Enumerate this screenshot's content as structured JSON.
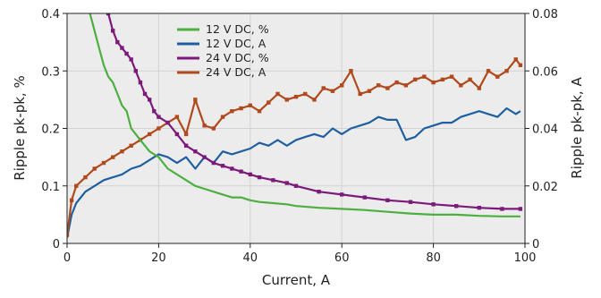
{
  "chart_data": {
    "type": "line",
    "xlabel": "Current, A",
    "ylabel_left": "Ripple pk-pk, %",
    "ylabel_right": "Ripple pk-pk, A",
    "xlim": [
      0,
      100
    ],
    "ylim_left": [
      0,
      0.4
    ],
    "ylim_right": [
      0,
      0.08
    ],
    "x_ticks": [
      0,
      20,
      40,
      60,
      80,
      100
    ],
    "y_ticks_left": [
      0,
      0.1,
      0.2,
      0.3,
      0.4
    ],
    "y_ticks_left_labels": [
      "0",
      "0.1",
      "0.2",
      "0.3",
      "0.4"
    ],
    "y_ticks_right": [
      0,
      0.02,
      0.04,
      0.06,
      0.08
    ],
    "y_ticks_right_labels": [
      "0",
      "0.02",
      "0.04",
      "0.06",
      "0.08"
    ],
    "grid": true,
    "legend_position": "top-center",
    "series": [
      {
        "name": "12 V DC, %",
        "axis": "left",
        "color": "#4daf3f",
        "x": [
          5,
          6,
          7,
          8,
          9,
          10,
          11,
          12,
          13,
          14,
          15,
          16,
          18,
          20,
          22,
          24,
          26,
          28,
          30,
          32,
          34,
          36,
          38,
          40,
          42,
          45,
          48,
          50,
          55,
          60,
          65,
          70,
          75,
          80,
          85,
          90,
          95,
          99
        ],
        "y": [
          0.4,
          0.37,
          0.34,
          0.31,
          0.29,
          0.28,
          0.26,
          0.24,
          0.23,
          0.2,
          0.19,
          0.18,
          0.16,
          0.15,
          0.13,
          0.12,
          0.11,
          0.1,
          0.095,
          0.09,
          0.085,
          0.08,
          0.08,
          0.075,
          0.072,
          0.07,
          0.068,
          0.065,
          0.062,
          0.06,
          0.058,
          0.055,
          0.052,
          0.05,
          0.05,
          0.048,
          0.047,
          0.047
        ]
      },
      {
        "name": "12 V DC, A",
        "axis": "right",
        "color": "#1f5fa0",
        "x": [
          0,
          1,
          2,
          4,
          6,
          8,
          10,
          12,
          14,
          16,
          18,
          20,
          22,
          24,
          26,
          28,
          30,
          32,
          34,
          36,
          38,
          40,
          42,
          44,
          46,
          48,
          50,
          52,
          54,
          56,
          58,
          60,
          62,
          64,
          66,
          68,
          70,
          72,
          74,
          76,
          78,
          80,
          82,
          84,
          86,
          88,
          90,
          92,
          94,
          96,
          98,
          99
        ],
        "y": [
          0.002,
          0.01,
          0.014,
          0.018,
          0.02,
          0.022,
          0.023,
          0.024,
          0.026,
          0.027,
          0.029,
          0.031,
          0.03,
          0.028,
          0.03,
          0.026,
          0.03,
          0.028,
          0.032,
          0.031,
          0.032,
          0.033,
          0.035,
          0.034,
          0.036,
          0.034,
          0.036,
          0.037,
          0.038,
          0.037,
          0.04,
          0.038,
          0.04,
          0.041,
          0.042,
          0.044,
          0.043,
          0.043,
          0.036,
          0.037,
          0.04,
          0.041,
          0.042,
          0.042,
          0.044,
          0.045,
          0.046,
          0.045,
          0.044,
          0.047,
          0.045,
          0.046
        ]
      },
      {
        "name": "24 V DC, %",
        "axis": "left",
        "color": "#7b1a7a",
        "x": [
          9,
          10,
          11,
          12,
          13,
          14,
          15,
          16,
          17,
          18,
          19,
          20,
          22,
          24,
          26,
          28,
          30,
          32,
          34,
          36,
          38,
          40,
          42,
          45,
          48,
          50,
          55,
          60,
          65,
          70,
          75,
          80,
          85,
          90,
          95,
          99
        ],
        "y": [
          0.4,
          0.37,
          0.35,
          0.34,
          0.33,
          0.32,
          0.3,
          0.28,
          0.26,
          0.25,
          0.23,
          0.22,
          0.21,
          0.19,
          0.17,
          0.16,
          0.15,
          0.14,
          0.135,
          0.13,
          0.125,
          0.12,
          0.115,
          0.11,
          0.105,
          0.1,
          0.09,
          0.085,
          0.08,
          0.075,
          0.072,
          0.068,
          0.065,
          0.062,
          0.06,
          0.06
        ]
      },
      {
        "name": "24 V DC, A",
        "axis": "right",
        "color": "#b04a1c",
        "x": [
          0,
          1,
          2,
          4,
          6,
          8,
          10,
          12,
          14,
          16,
          18,
          20,
          22,
          24,
          26,
          28,
          30,
          32,
          34,
          36,
          38,
          40,
          42,
          44,
          46,
          48,
          50,
          52,
          54,
          56,
          58,
          60,
          62,
          64,
          66,
          68,
          70,
          72,
          74,
          76,
          78,
          80,
          82,
          84,
          86,
          88,
          90,
          92,
          94,
          96,
          98,
          99
        ],
        "y": [
          0.003,
          0.015,
          0.02,
          0.023,
          0.026,
          0.028,
          0.03,
          0.032,
          0.034,
          0.036,
          0.038,
          0.04,
          0.042,
          0.044,
          0.038,
          0.05,
          0.041,
          0.04,
          0.044,
          0.046,
          0.047,
          0.048,
          0.046,
          0.049,
          0.052,
          0.05,
          0.051,
          0.052,
          0.05,
          0.054,
          0.053,
          0.055,
          0.06,
          0.052,
          0.053,
          0.055,
          0.054,
          0.056,
          0.055,
          0.057,
          0.058,
          0.056,
          0.057,
          0.058,
          0.055,
          0.057,
          0.054,
          0.06,
          0.058,
          0.06,
          0.064,
          0.062
        ]
      }
    ]
  }
}
